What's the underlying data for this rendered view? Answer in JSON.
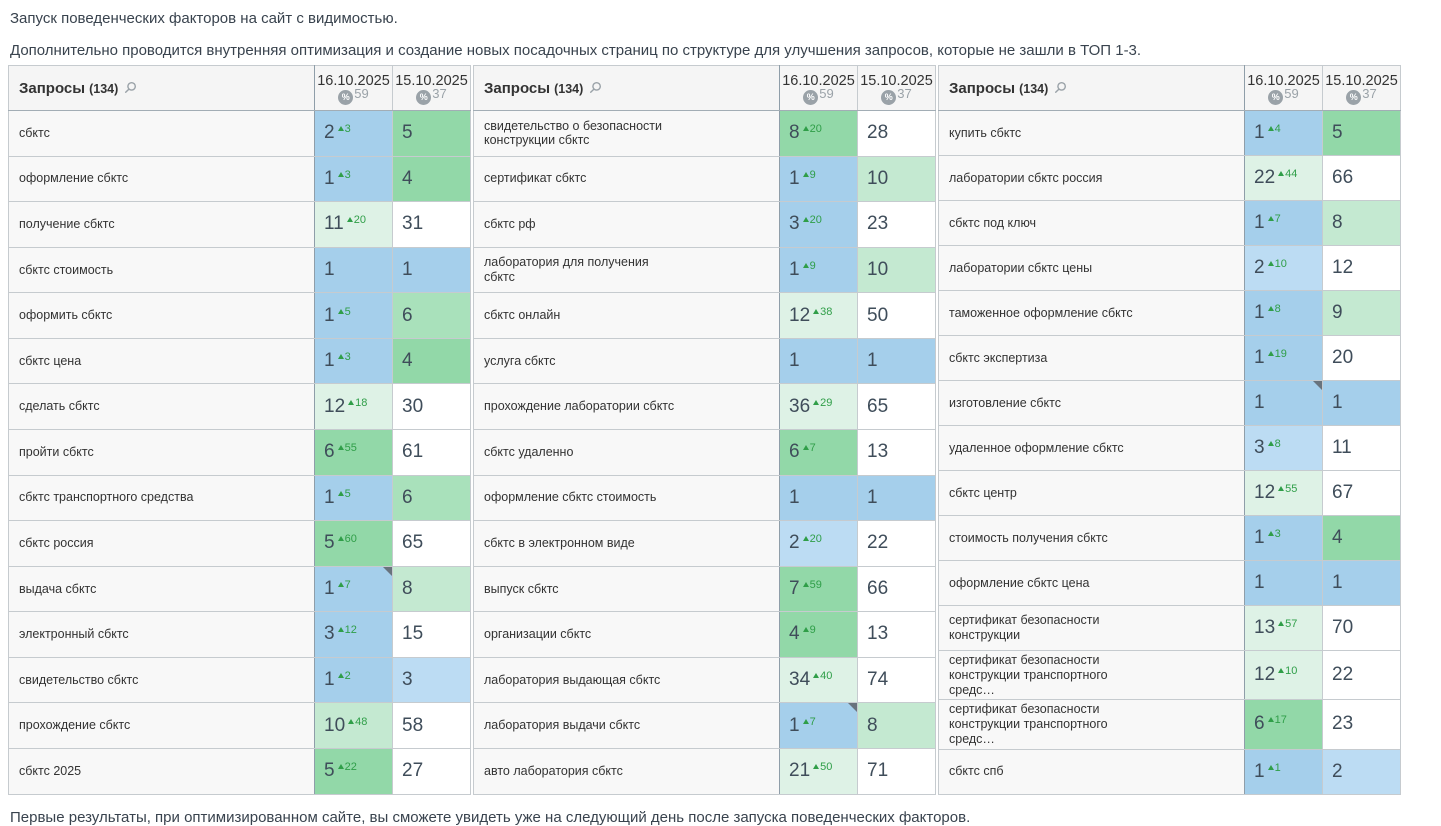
{
  "intro": {
    "line1": "Запуск поведенческих факторов на сайт с видимостью.",
    "line2": "Дополнительно проводится внутренняя оптимизация и создание новых посадочных страниц по структуре для улучшения запросов, которые не зашли в ТОП 1-3."
  },
  "footer": {
    "text": "Первые результаты, при оптимизированном сайте, вы сможете увидеть уже на следующий день после запуска поведенческих факторов."
  },
  "colors": {
    "b": "#a5cfeb",
    "bl": "#bcdcf3",
    "g": "#92d8a8",
    "g2": "#a9e1bb",
    "gl": "#c4e9d1",
    "gp": "#def2e6",
    "w": "#ffffff",
    "delta_green": "#2f9e48",
    "corner_gray": "#68737d",
    "header_bg": "#f5f5f5",
    "icon_gray": "#9aa2a8"
  },
  "table": {
    "query_label": "Запросы",
    "query_count": "(134)",
    "percent_symbol": "%",
    "columns": [
      {
        "date": "16.10.2025",
        "visibility": "59"
      },
      {
        "date": "15.10.2025",
        "visibility": "37"
      }
    ],
    "groups": [
      {
        "rows": [
          {
            "label": "сбктс",
            "v1": "2",
            "d1": "3",
            "c1": "b",
            "v2": "5",
            "c2": "g",
            "tri": false
          },
          {
            "label": "оформление сбктс",
            "v1": "1",
            "d1": "3",
            "c1": "b",
            "v2": "4",
            "c2": "g",
            "tri": false
          },
          {
            "label": "получение сбктс",
            "v1": "11",
            "d1": "20",
            "c1": "gp",
            "v2": "31",
            "c2": "w",
            "tri": false
          },
          {
            "label": "сбктс стоимость",
            "v1": "1",
            "d1": "",
            "c1": "b",
            "v2": "1",
            "c2": "b",
            "tri": false
          },
          {
            "label": "оформить сбктс",
            "v1": "1",
            "d1": "5",
            "c1": "b",
            "v2": "6",
            "c2": "g2",
            "tri": false
          },
          {
            "label": "сбктс цена",
            "v1": "1",
            "d1": "3",
            "c1": "b",
            "v2": "4",
            "c2": "g",
            "tri": false
          },
          {
            "label": "сделать сбктс",
            "v1": "12",
            "d1": "18",
            "c1": "gp",
            "v2": "30",
            "c2": "w",
            "tri": false
          },
          {
            "label": "пройти сбктс",
            "v1": "6",
            "d1": "55",
            "c1": "g",
            "v2": "61",
            "c2": "w",
            "tri": false
          },
          {
            "label": "сбктс транспортного средства",
            "v1": "1",
            "d1": "5",
            "c1": "b",
            "v2": "6",
            "c2": "g2",
            "tri": false
          },
          {
            "label": "сбктс россия",
            "v1": "5",
            "d1": "60",
            "c1": "g",
            "v2": "65",
            "c2": "w",
            "tri": false
          },
          {
            "label": "выдача сбктс",
            "v1": "1",
            "d1": "7",
            "c1": "b",
            "v2": "8",
            "c2": "gl",
            "tri": true
          },
          {
            "label": "электронный сбктс",
            "v1": "3",
            "d1": "12",
            "c1": "b",
            "v2": "15",
            "c2": "w",
            "tri": false
          },
          {
            "label": "свидетельство сбктс",
            "v1": "1",
            "d1": "2",
            "c1": "b",
            "v2": "3",
            "c2": "bl",
            "tri": false
          },
          {
            "label": "прохождение сбктс",
            "v1": "10",
            "d1": "48",
            "c1": "gl",
            "v2": "58",
            "c2": "w",
            "tri": false
          },
          {
            "label": "сбктс 2025",
            "v1": "5",
            "d1": "22",
            "c1": "g",
            "v2": "27",
            "c2": "w",
            "tri": false
          }
        ]
      },
      {
        "rows": [
          {
            "label": "свидетельство о безопасности\nконструкции сбктс",
            "v1": "8",
            "d1": "20",
            "c1": "g",
            "v2": "28",
            "c2": "w",
            "tri": false
          },
          {
            "label": "сертификат сбктс",
            "v1": "1",
            "d1": "9",
            "c1": "b",
            "v2": "10",
            "c2": "gl",
            "tri": false
          },
          {
            "label": "сбктс рф",
            "v1": "3",
            "d1": "20",
            "c1": "b",
            "v2": "23",
            "c2": "w",
            "tri": false
          },
          {
            "label": "лаборатория для получения\nсбктс",
            "v1": "1",
            "d1": "9",
            "c1": "b",
            "v2": "10",
            "c2": "gl",
            "tri": false
          },
          {
            "label": "сбктс онлайн",
            "v1": "12",
            "d1": "38",
            "c1": "gp",
            "v2": "50",
            "c2": "w",
            "tri": false
          },
          {
            "label": "услуга сбктс",
            "v1": "1",
            "d1": "",
            "c1": "b",
            "v2": "1",
            "c2": "b",
            "tri": false
          },
          {
            "label": "прохождение лаборатории сбктс",
            "v1": "36",
            "d1": "29",
            "c1": "gp",
            "v2": "65",
            "c2": "w",
            "tri": false
          },
          {
            "label": "сбктс удаленно",
            "v1": "6",
            "d1": "7",
            "c1": "g",
            "v2": "13",
            "c2": "w",
            "tri": false
          },
          {
            "label": "оформление сбктс стоимость",
            "v1": "1",
            "d1": "",
            "c1": "b",
            "v2": "1",
            "c2": "b",
            "tri": false
          },
          {
            "label": "сбктс в электронном виде",
            "v1": "2",
            "d1": "20",
            "c1": "bl",
            "v2": "22",
            "c2": "w",
            "tri": false
          },
          {
            "label": "выпуск сбктс",
            "v1": "7",
            "d1": "59",
            "c1": "g",
            "v2": "66",
            "c2": "w",
            "tri": false
          },
          {
            "label": "организации сбктс",
            "v1": "4",
            "d1": "9",
            "c1": "g",
            "v2": "13",
            "c2": "w",
            "tri": false
          },
          {
            "label": "лаборатория выдающая сбктс",
            "v1": "34",
            "d1": "40",
            "c1": "gp",
            "v2": "74",
            "c2": "w",
            "tri": false
          },
          {
            "label": "лаборатория выдачи сбктс",
            "v1": "1",
            "d1": "7",
            "c1": "b",
            "v2": "8",
            "c2": "gl",
            "tri": true
          },
          {
            "label": "авто лаборатория сбктс",
            "v1": "21",
            "d1": "50",
            "c1": "gp",
            "v2": "71",
            "c2": "w",
            "tri": false
          }
        ]
      },
      {
        "rows": [
          {
            "label": "купить сбктс",
            "v1": "1",
            "d1": "4",
            "c1": "b",
            "v2": "5",
            "c2": "g",
            "tri": false
          },
          {
            "label": "лаборатории сбктс россия",
            "v1": "22",
            "d1": "44",
            "c1": "gp",
            "v2": "66",
            "c2": "w",
            "tri": false
          },
          {
            "label": "сбктс под ключ",
            "v1": "1",
            "d1": "7",
            "c1": "b",
            "v2": "8",
            "c2": "gl",
            "tri": false
          },
          {
            "label": "лаборатории сбктс цены",
            "v1": "2",
            "d1": "10",
            "c1": "bl",
            "v2": "12",
            "c2": "w",
            "tri": false
          },
          {
            "label": "таможенное оформление сбктс",
            "v1": "1",
            "d1": "8",
            "c1": "b",
            "v2": "9",
            "c2": "gl",
            "tri": false
          },
          {
            "label": "сбктс экспертиза",
            "v1": "1",
            "d1": "19",
            "c1": "b",
            "v2": "20",
            "c2": "w",
            "tri": false
          },
          {
            "label": "изготовление сбктс",
            "v1": "1",
            "d1": "",
            "c1": "b",
            "v2": "1",
            "c2": "b",
            "tri": true
          },
          {
            "label": "удаленное оформление сбктс",
            "v1": "3",
            "d1": "8",
            "c1": "bl",
            "v2": "11",
            "c2": "w",
            "tri": false
          },
          {
            "label": "сбктс центр",
            "v1": "12",
            "d1": "55",
            "c1": "gp",
            "v2": "67",
            "c2": "w",
            "tri": false
          },
          {
            "label": "стоимость получения сбктс",
            "v1": "1",
            "d1": "3",
            "c1": "b",
            "v2": "4",
            "c2": "g",
            "tri": false
          },
          {
            "label": "оформление сбктс цена",
            "v1": "1",
            "d1": "",
            "c1": "b",
            "v2": "1",
            "c2": "b",
            "tri": false
          },
          {
            "label": "сертификат безопасности\nконструкции",
            "v1": "13",
            "d1": "57",
            "c1": "gp",
            "v2": "70",
            "c2": "w",
            "tri": false
          },
          {
            "label": "сертификат безопасности\nконструкции транспортного\nсредс…",
            "v1": "12",
            "d1": "10",
            "c1": "gp",
            "v2": "22",
            "c2": "w",
            "tri": false
          },
          {
            "label": "сертификат безопасности\nконструкции транспортного\nсредс…",
            "v1": "6",
            "d1": "17",
            "c1": "g",
            "v2": "23",
            "c2": "w",
            "tri": false
          },
          {
            "label": "сбктс спб",
            "v1": "1",
            "d1": "1",
            "c1": "b",
            "v2": "2",
            "c2": "bl",
            "tri": false
          }
        ]
      }
    ]
  }
}
